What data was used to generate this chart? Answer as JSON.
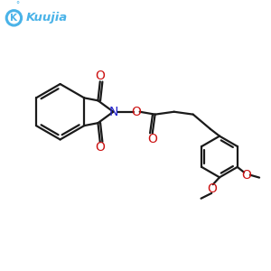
{
  "background_color": "#ffffff",
  "logo_color": "#4ab3e8",
  "bond_color": "#1a1a1a",
  "N_color": "#2222cc",
  "O_color": "#cc1111",
  "line_width": 1.6,
  "figsize": [
    3.0,
    3.0
  ],
  "dpi": 100,
  "xlim": [
    0,
    10
  ],
  "ylim": [
    0,
    10
  ]
}
